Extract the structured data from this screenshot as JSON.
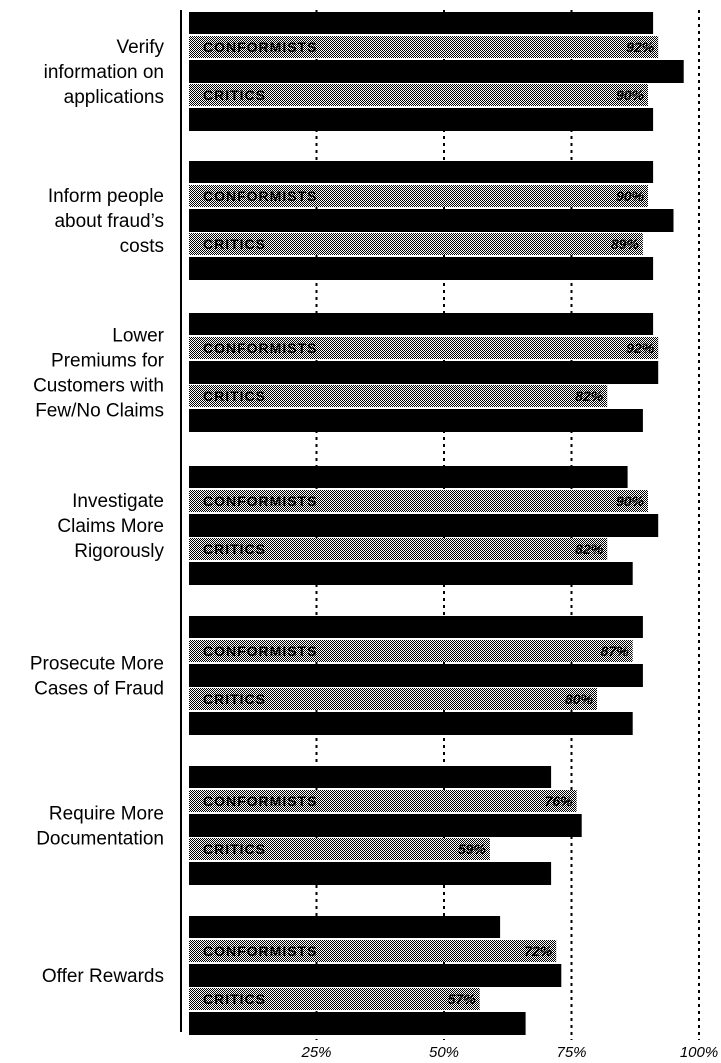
{
  "chart_data": {
    "type": "bar",
    "orientation": "horizontal",
    "x_ticks": [
      "25%",
      "50%",
      "75%",
      "100%"
    ],
    "xlim": [
      0,
      100
    ],
    "grid": "dotted vertical",
    "colors": {
      "black_bar": "#000000",
      "gray_bar": "#9a9a9a"
    },
    "series_labels": {
      "conformists": "CONFORMISTS",
      "critics": "CRITICS"
    },
    "categories": [
      {
        "label": "Verify information on applications",
        "lines": [
          "Verify",
          "information on",
          "applications"
        ],
        "bars": [
          {
            "kind": "black",
            "value": 91
          },
          {
            "kind": "gray",
            "series": "conformists",
            "value": 92,
            "label": "92%"
          },
          {
            "kind": "black",
            "value": 97
          },
          {
            "kind": "gray",
            "series": "critics",
            "value": 90,
            "label": "90%"
          },
          {
            "kind": "black",
            "value": 91
          }
        ]
      },
      {
        "label": "Inform people about fraud's costs",
        "lines": [
          "Inform people",
          "about fraud’s",
          "costs"
        ],
        "bars": [
          {
            "kind": "black",
            "value": 91
          },
          {
            "kind": "gray",
            "series": "conformists",
            "value": 90,
            "label": "90%"
          },
          {
            "kind": "black",
            "value": 95
          },
          {
            "kind": "gray",
            "series": "critics",
            "value": 89,
            "label": "89%"
          },
          {
            "kind": "black",
            "value": 91
          }
        ]
      },
      {
        "label": "Lower Premiums for Customers with Few/No Claims",
        "lines": [
          "Lower",
          "Premiums for",
          "Customers with",
          "Few/No Claims"
        ],
        "bars": [
          {
            "kind": "black",
            "value": 91
          },
          {
            "kind": "gray",
            "series": "conformists",
            "value": 92,
            "label": "92%"
          },
          {
            "kind": "black",
            "value": 92
          },
          {
            "kind": "gray",
            "series": "critics",
            "value": 82,
            "label": "82%"
          },
          {
            "kind": "black",
            "value": 89
          }
        ]
      },
      {
        "label": "Investigate Claims More Rigorously",
        "lines": [
          "Investigate",
          "Claims More",
          "Rigorously"
        ],
        "bars": [
          {
            "kind": "black",
            "value": 86
          },
          {
            "kind": "gray",
            "series": "conformists",
            "value": 90,
            "label": "90%"
          },
          {
            "kind": "black",
            "value": 92
          },
          {
            "kind": "gray",
            "series": "critics",
            "value": 82,
            "label": "82%"
          },
          {
            "kind": "black",
            "value": 87
          }
        ]
      },
      {
        "label": "Prosecute More Cases of Fraud",
        "lines": [
          "Prosecute More",
          "Cases of Fraud"
        ],
        "bars": [
          {
            "kind": "black",
            "value": 89
          },
          {
            "kind": "gray",
            "series": "conformists",
            "value": 87,
            "label": "87%"
          },
          {
            "kind": "black",
            "value": 89
          },
          {
            "kind": "gray",
            "series": "critics",
            "value": 80,
            "label": "80%"
          },
          {
            "kind": "black",
            "value": 87
          }
        ]
      },
      {
        "label": "Require More Documentation",
        "lines": [
          "Require More",
          "Documentation"
        ],
        "bars": [
          {
            "kind": "black",
            "value": 71
          },
          {
            "kind": "gray",
            "series": "conformists",
            "value": 76,
            "label": "76%"
          },
          {
            "kind": "black",
            "value": 77
          },
          {
            "kind": "gray",
            "series": "critics",
            "value": 59,
            "label": "59%"
          },
          {
            "kind": "black",
            "value": 71
          }
        ]
      },
      {
        "label": "Offer Rewards",
        "lines": [
          "Offer Rewards"
        ],
        "bars": [
          {
            "kind": "black",
            "value": 61
          },
          {
            "kind": "gray",
            "series": "conformists",
            "value": 72,
            "label": "72%"
          },
          {
            "kind": "black",
            "value": 73
          },
          {
            "kind": "gray",
            "series": "critics",
            "value": 57,
            "label": "57%"
          },
          {
            "kind": "black",
            "value": 66
          }
        ]
      }
    ]
  }
}
